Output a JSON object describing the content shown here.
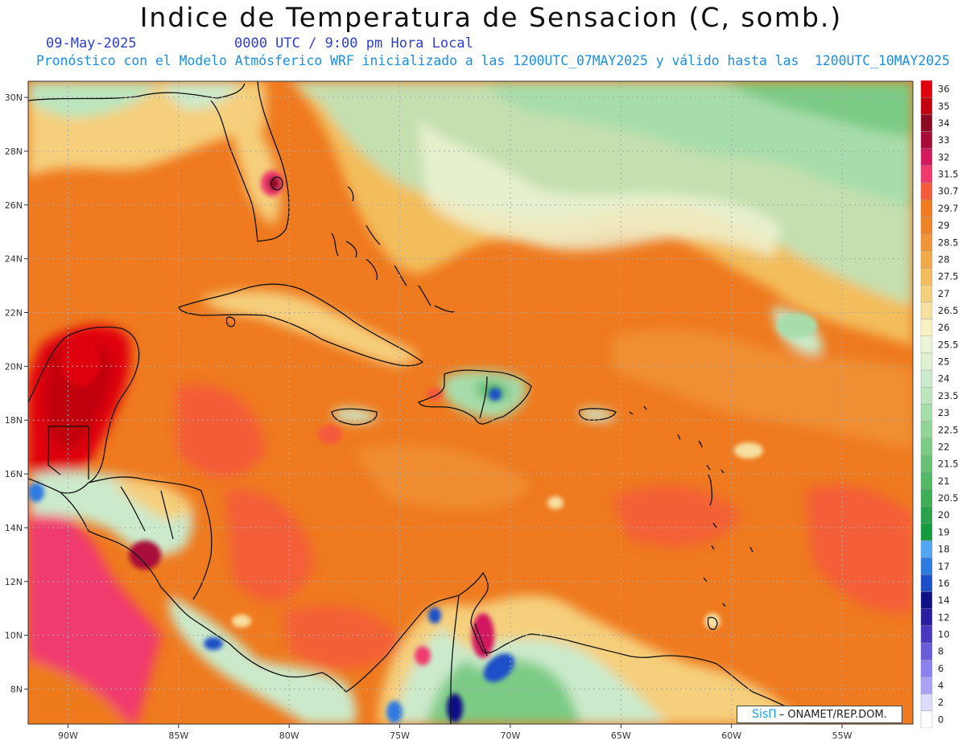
{
  "header": {
    "title": "Indice de Temperatura de Sensacion (C, somb.)",
    "date": "09-May-2025",
    "time": "0000 UTC / 9:00 pm Hora Local",
    "subtitle": "Pronóstico con el Modelo Atmósferico WRF inicializado a las 1200UTC_07MAY2025 y válido hasta las  1200UTC_10MAY2025"
  },
  "map": {
    "lon_labels": [
      "90W",
      "85W",
      "80W",
      "75W",
      "70W",
      "65W",
      "60W",
      "55W"
    ],
    "lon_values": [
      -90,
      -85,
      -80,
      -75,
      -70,
      -65,
      -60,
      -55
    ],
    "lat_labels": [
      "30N",
      "28N",
      "26N",
      "24N",
      "22N",
      "20N",
      "18N",
      "16N",
      "14N",
      "12N",
      "10N",
      "8N"
    ],
    "lat_values": [
      30,
      28,
      26,
      24,
      22,
      20,
      18,
      16,
      14,
      12,
      10,
      8
    ],
    "extent": {
      "lon_min": -91.8,
      "lon_max": -51.8,
      "lat_min": 6.7,
      "lat_max": 30.6
    },
    "gridlines": "dotted",
    "base_color": "#ef7a1f",
    "land_outline_color": "#111111"
  },
  "legend": {
    "labels": [
      "0",
      "2",
      "4",
      "6",
      "8",
      "10",
      "12",
      "14",
      "16",
      "17",
      "18",
      "19",
      "20",
      "20.5",
      "21",
      "21.5",
      "22",
      "22.5",
      "23",
      "23.5",
      "24",
      "25",
      "25.5",
      "26",
      "26.5",
      "27",
      "27.5",
      "28",
      "28.5",
      "29",
      "29.7",
      "30.7",
      "31.5",
      "32",
      "33",
      "34",
      "35",
      "36"
    ],
    "colors": [
      "#ffffff",
      "#dcdcfa",
      "#aba2f8",
      "#8b80ee",
      "#6a5bd9",
      "#4a37bf",
      "#2a1ea0",
      "#101085",
      "#1a4fc8",
      "#2e7ae0",
      "#52a6f2",
      "#169a3e",
      "#28a34a",
      "#3dad56",
      "#52b865",
      "#67c275",
      "#7ccb85",
      "#92d498",
      "#a7ddab",
      "#bce5bd",
      "#cbeacb",
      "#ddf0d2",
      "#eef4d6",
      "#f8f1c4",
      "#f6e0a0",
      "#f5cf7c",
      "#f3bd5c",
      "#f2aa48",
      "#f09437",
      "#ee8228",
      "#ef7a1f",
      "#f45a3c",
      "#f03a6e",
      "#d2195e",
      "#a90b3a",
      "#8c0a22",
      "#c00010",
      "#e0000e"
    ]
  },
  "credit": {
    "logo": "SisΠ",
    "text": "– ONAMET/REP.DOM."
  }
}
